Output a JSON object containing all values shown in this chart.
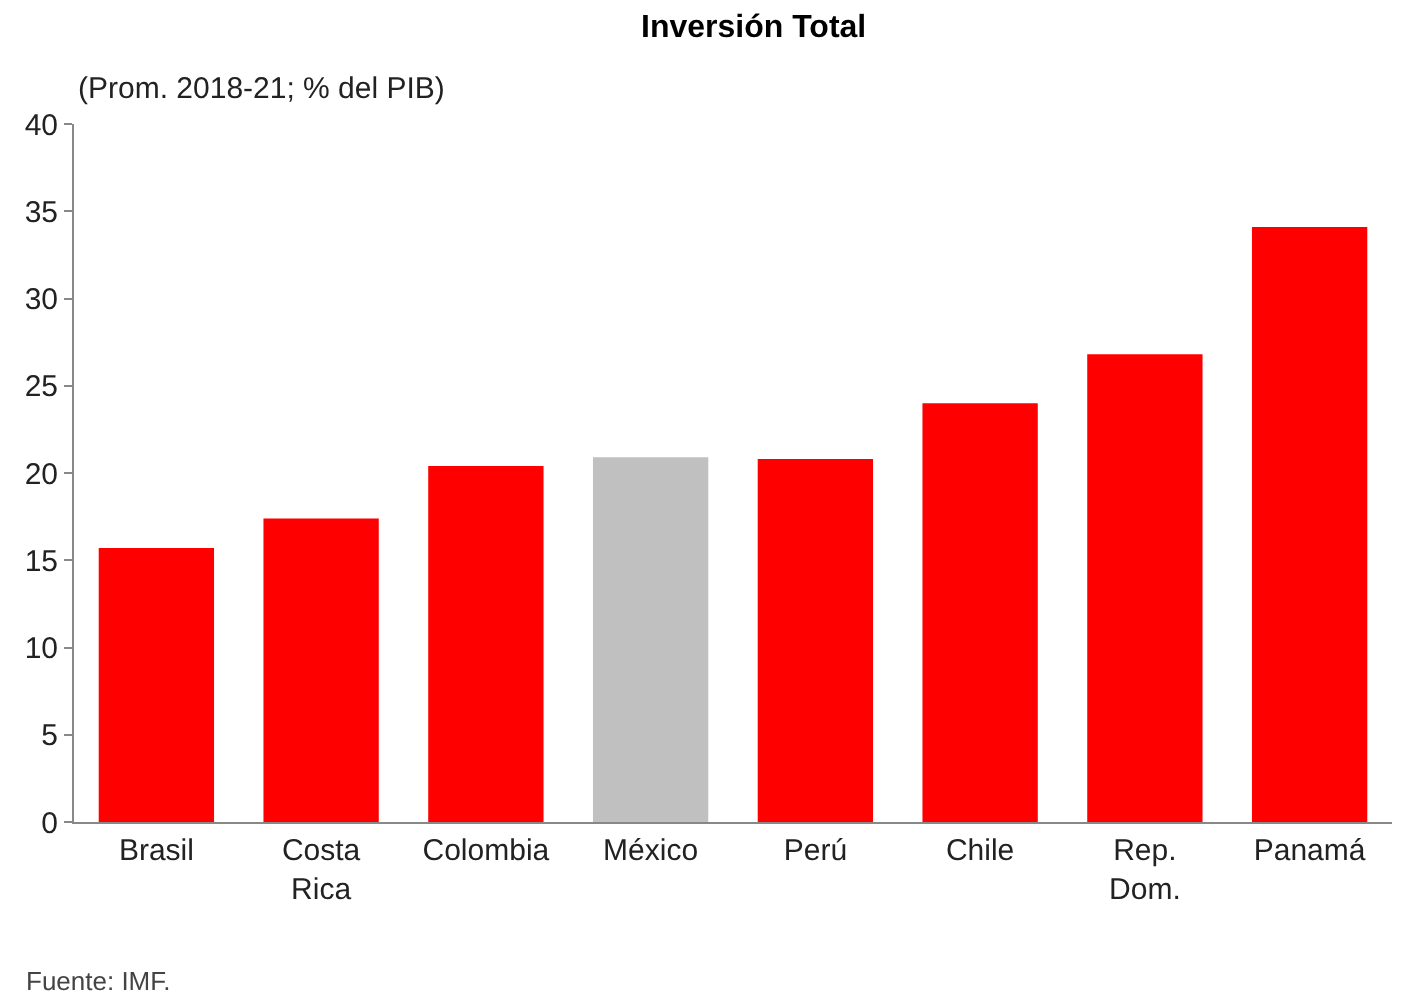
{
  "chart_data": {
    "type": "bar",
    "title": "Inversión Total",
    "subtitle": "(Prom. 2018-21; % del PIB)",
    "categories": [
      "Brasil",
      "Costa Rica",
      "Colombia",
      "México",
      "Perú",
      "Chile",
      "Rep. Dom.",
      "Panamá"
    ],
    "values": [
      15.7,
      17.4,
      20.4,
      20.9,
      20.8,
      24.0,
      26.8,
      34.1
    ],
    "colors": [
      "#ff0000",
      "#ff0000",
      "#ff0000",
      "#c0c0c0",
      "#ff0000",
      "#ff0000",
      "#ff0000",
      "#ff0000"
    ],
    "ylim": [
      0,
      40
    ],
    "yticks": [
      0,
      5,
      10,
      15,
      20,
      25,
      30,
      35,
      40
    ],
    "annotations": [
      "Fuente: IMF."
    ]
  }
}
